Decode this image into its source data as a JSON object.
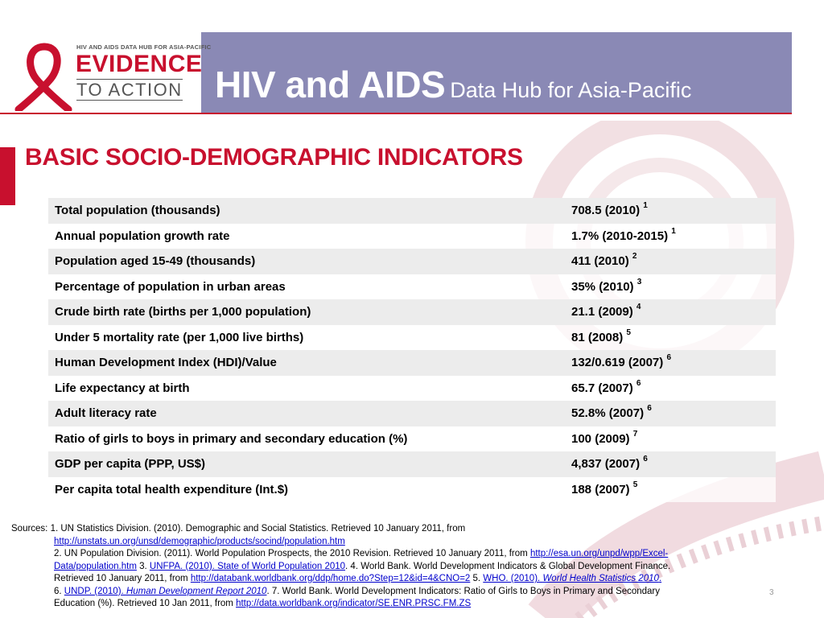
{
  "logo": {
    "tagline": "HIV AND AIDS DATA HUB FOR ASIA-PACIFIC",
    "line1": "EVIDENCE",
    "line2": "TO ACTION",
    "ribbon_color": "#c8102e"
  },
  "header": {
    "title_main": "HIV and AIDS",
    "title_sub": "Data Hub for Asia-Pacific",
    "background": "#8a89b5"
  },
  "section_title": "BASIC SOCIO-DEMOGRAPHIC INDICATORS",
  "indicators": [
    {
      "label": "Total population (thousands)",
      "value": "708.5 (2010)",
      "ref": "1"
    },
    {
      "label": "Annual population growth rate",
      "value": "1.7% (2010-2015)",
      "ref": "1"
    },
    {
      "label": "Population aged 15-49 (thousands)",
      "value": "411 (2010)",
      "ref": "2"
    },
    {
      "label": "Percentage of population in urban areas",
      "value": "35% (2010)",
      "ref": "3"
    },
    {
      "label": "Crude birth rate (births per 1,000 population)",
      "value": "21.1 (2009)",
      "ref": "4"
    },
    {
      "label": "Under 5 mortality rate (per 1,000 live births)",
      "value": "81 (2008)",
      "ref": "5"
    },
    {
      "label": "Human Development Index (HDI)/Value",
      "value": "132/0.619 (2007)",
      "ref": "6"
    },
    {
      "label": "Life expectancy at birth",
      "value": "65.7 (2007)",
      "ref": "6"
    },
    {
      "label": "Adult literacy rate",
      "value": "52.8% (2007)",
      "ref": "6"
    },
    {
      "label": "Ratio of girls to boys in primary and secondary education (%)",
      "value": "100 (2009)",
      "ref": "7"
    },
    {
      "label": "GDP per capita (PPP, US$)",
      "value": "4,837 (2007)",
      "ref": "6"
    },
    {
      "label": "Per capita total health expenditure (Int.$)",
      "value": "188 (2007)",
      "ref": "5"
    }
  ],
  "sources": {
    "s1_prefix": "Sources:  1. UN Statistics Division. (2010). Demographic and Social Statistics.   Retrieved 10 January 2011, from",
    "s1_link": "http://unstats.un.org/unsd/demographic/products/socind/population.htm",
    "s2_text": " 2. UN Population Division. (2011). World Population Prospects, the 2010 Revision.   Retrieved 10 January 2011, from ",
    "s2_link_a": "http://esa.un.org/unpd/wpp/Excel-",
    "s2_link_b": "Data/population.htm",
    "s3_label": "   3. ",
    "s3_link": "UNFPA. (2010). State of World Population 2010",
    "s4_text": ".  4. World Bank. World Development Indicators & Global Development Finance.",
    "s4_retrieved": "Retrieved 10 January 2011, from ",
    "s4_link": "http://databank.worldbank.org/ddp/home.do?Step=12&id=4&CNO=2",
    "s5_label": "   5. ",
    "s5_link_a": "WHO. (2010). ",
    "s5_link_b": "World Health Statistics 2010",
    "s5_link_c": ".",
    "s6_label": "6. ",
    "s6_link_a": "UNDP. (2010). ",
    "s6_link_b": "Human Development Report 2010",
    "s7_text": ".  7. World Bank. World Development Indicators: Ratio of Girls to Boys in Primary and Secondary",
    "s7_cont": "Education (%).   Retrieved 10 Jan 2011, from ",
    "s7_link": "http://data.worldbank.org/indicator/SE.ENR.PRSC.FM.ZS"
  },
  "page_number": "3"
}
